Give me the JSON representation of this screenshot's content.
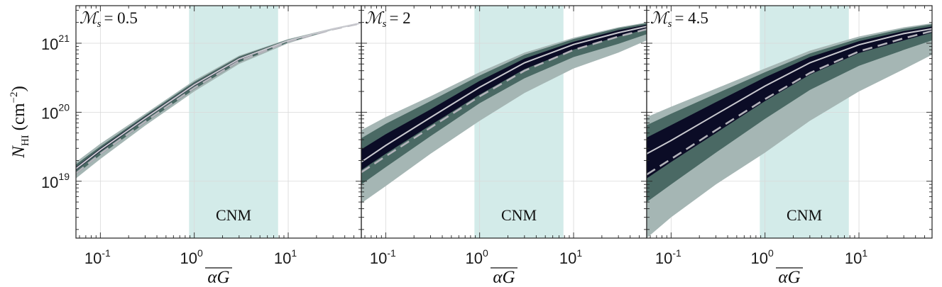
{
  "chart_data": {
    "type": "area",
    "layout": "three panels side by side, shared y-axis",
    "ylabel": {
      "main": "N",
      "sub": "HI",
      "unit_open": "(cm",
      "unit_exp": "−2",
      "unit_close": ")"
    },
    "xlabel": "αG",
    "xscale": "log",
    "yscale": "log",
    "xlim": [
      0.055,
      60
    ],
    "ylim": [
      1.5e+18,
      3.5e+21
    ],
    "x_ticks": [
      {
        "value": 0.1,
        "base": "10",
        "exp": "-1"
      },
      {
        "value": 1,
        "base": "10",
        "exp": "0"
      },
      {
        "value": 10,
        "base": "10",
        "exp": "1"
      }
    ],
    "y_ticks": [
      {
        "value": 1e+19,
        "base": "10",
        "exp": "19"
      },
      {
        "value": 1e+20,
        "base": "10",
        "exp": "20"
      },
      {
        "value": 1e+21,
        "base": "10",
        "exp": "21"
      }
    ],
    "shaded_region": {
      "label": "CNM",
      "x_range": [
        0.88,
        7.8
      ],
      "color": "#d3ebe9"
    },
    "band_colors": {
      "outer": "#a5b6b4",
      "middle": "#4a6964",
      "inner": "#0b0c26",
      "median": "#c9c9cf",
      "dashed": "#b3b3ba"
    },
    "x": [
      0.055,
      0.1,
      0.3,
      1,
      3,
      10,
      30,
      60
    ],
    "panels": [
      {
        "title_symbol": "ℳ",
        "title_sub": "s",
        "title_value": "= 0.5",
        "series": [
          {
            "name": "outer_band_upper",
            "values": [
              1.9e+19,
              3.5e+19,
              9.5e+19,
              2.9e+20,
              6.6e+20,
              1.15e+21,
              1.65e+21,
              2e+21
            ]
          },
          {
            "name": "outer_band_lower",
            "values": [
              1.1e+19,
              2.1e+19,
              6.4e+19,
              2e+20,
              5e+20,
              1e+21,
              1.56e+21,
              1.92e+21
            ]
          },
          {
            "name": "middle_band_upper",
            "values": [
              1.75e+19,
              3.2e+19,
              9e+19,
              2.75e+20,
              6.4e+20,
              1.13e+21,
              1.63e+21,
              1.99e+21
            ]
          },
          {
            "name": "middle_band_lower",
            "values": [
              1.25e+19,
              2.4e+19,
              7e+19,
              2.15e+20,
              5.3e+20,
              1.03e+21,
              1.58e+21,
              1.94e+21
            ]
          },
          {
            "name": "inner_band_upper",
            "values": [
              1.6e+19,
              3e+19,
              8.6e+19,
              2.6e+20,
              6.1e+20,
              1.11e+21,
              1.62e+21,
              1.97e+21
            ]
          },
          {
            "name": "inner_band_lower",
            "values": [
              1.45e+19,
              2.7e+19,
              7.9e+19,
              2.4e+20,
              5.7e+20,
              1.07e+21,
              1.6e+21,
              1.96e+21
            ]
          },
          {
            "name": "median",
            "values": [
              1.52e+19,
              2.85e+19,
              8.2e+19,
              2.5e+20,
              5.9e+20,
              1.09e+21,
              1.61e+21,
              1.97e+21
            ]
          },
          {
            "name": "dashed",
            "values": [
              1.3e+19,
              2.5e+19,
              7.3e+19,
              2.25e+20,
              5.5e+20,
              1.05e+21,
              1.59e+21,
              1.95e+21
            ]
          }
        ]
      },
      {
        "title_symbol": "ℳ",
        "title_sub": "s",
        "title_value": "= 2",
        "series": [
          {
            "name": "outer_band_upper",
            "values": [
              5.5e+19,
              8.5e+19,
              1.7e+20,
              3.8e+20,
              7.3e+20,
              1.2e+21,
              1.7e+21,
              2e+21
            ]
          },
          {
            "name": "outer_band_lower",
            "values": [
              4.8e+18,
              8.5e+18,
              2.5e+19,
              7.5e+19,
              1.9e+20,
              4.3e+20,
              7.3e+20,
              1.1e+21
            ]
          },
          {
            "name": "middle_band_upper",
            "values": [
              4.2e+19,
              6.8e+19,
              1.45e+20,
              3.4e+20,
              6.8e+20,
              1.15e+21,
              1.65e+21,
              1.95e+21
            ]
          },
          {
            "name": "middle_band_lower",
            "values": [
              9e+18,
              1.6e+19,
              4.5e+19,
              1.35e+20,
              3.1e+20,
              6.3e+20,
              9.8e+20,
              1.35e+21
            ]
          },
          {
            "name": "inner_band_upper",
            "values": [
              2.9e+19,
              4.8e+19,
              1.1e+20,
              2.85e+20,
              6e+20,
              1.05e+21,
              1.55e+21,
              1.85e+21
            ]
          },
          {
            "name": "inner_band_lower",
            "values": [
              1.45e+19,
              2.5e+19,
              6.5e+19,
              1.8e+20,
              4.2e+20,
              8.1e+20,
              1.25e+21,
              1.6e+21
            ]
          },
          {
            "name": "median",
            "values": [
              1.9e+19,
              3.3e+19,
              8.4e+19,
              2.3e+20,
              5.2e+20,
              9.6e+20,
              1.42e+21,
              1.75e+21
            ]
          },
          {
            "name": "dashed",
            "values": [
              1.35e+19,
              2.3e+19,
              6e+19,
              1.7e+20,
              4e+20,
              8e+20,
              1.25e+21,
              1.6e+21
            ]
          }
        ]
      },
      {
        "title_symbol": "ℳ",
        "title_sub": "s",
        "title_value": "= 4.5",
        "series": [
          {
            "name": "outer_band_upper",
            "values": [
              8.5e+19,
              1.2e+20,
              2.2e+20,
              4.3e+20,
              7.8e+20,
              1.25e+21,
              1.7e+21,
              1.95e+21
            ]
          },
          {
            "name": "outer_band_lower",
            "values": [
              1.5e+18,
              3e+18,
              9e+18,
              2.6e+19,
              7.5e+19,
              2e+20,
              4.2e+20,
              6.8e+20
            ]
          },
          {
            "name": "middle_band_upper",
            "values": [
              6.5e+19,
              9.5e+19,
              1.85e+20,
              3.8e+20,
              7.1e+20,
              1.17e+21,
              1.62e+21,
              1.88e+21
            ]
          },
          {
            "name": "middle_band_lower",
            "values": [
              5e+18,
              9e+18,
              2.6e+19,
              8e+19,
              2.1e+20,
              4.7e+20,
              8e+20,
              1.1e+21
            ]
          },
          {
            "name": "inner_band_upper",
            "values": [
              4.3e+19,
              6.5e+19,
              1.4e+20,
              3.2e+20,
              6.3e+20,
              1.07e+21,
              1.5e+21,
              1.75e+21
            ]
          },
          {
            "name": "inner_band_lower",
            "values": [
              1.1e+19,
              1.9e+19,
              5e+19,
              1.45e+20,
              3.5e+20,
              7.2e+20,
              1.1e+21,
              1.42e+21
            ]
          },
          {
            "name": "median",
            "values": [
              2.5e+19,
              3.9e+19,
              9.3e+19,
              2.4e+20,
              5.2e+20,
              9.5e+20,
              1.38e+21,
              1.62e+21
            ]
          },
          {
            "name": "dashed",
            "values": [
              1.25e+19,
              2.1e+19,
              5.5e+19,
              1.55e+20,
              3.7e+20,
              7.6e+20,
              1.18e+21,
              1.5e+21
            ]
          }
        ]
      }
    ]
  }
}
